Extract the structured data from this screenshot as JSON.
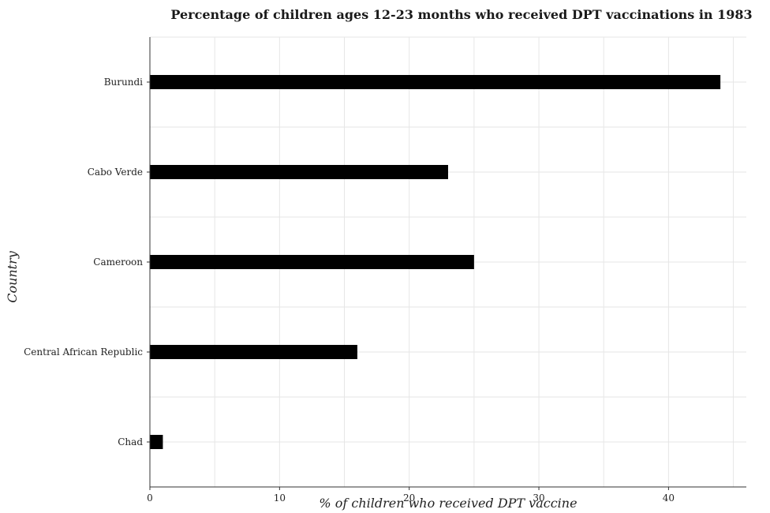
{
  "chart_data": {
    "type": "bar",
    "orientation": "horizontal",
    "title": "Percentage of children ages 12-23 months who received DPT vaccinations in 1983",
    "xlabel": "% of children who received DPT vaccine",
    "ylabel": "Country",
    "categories": [
      "Burundi",
      "Cabo Verde",
      "Cameroon",
      "Central African Republic",
      "Chad"
    ],
    "values": [
      44,
      23,
      25,
      16,
      1
    ],
    "xlim": [
      0,
      46
    ],
    "xticks": [
      0,
      10,
      20,
      30,
      40
    ],
    "grid": true,
    "bar_color": "#000000"
  }
}
